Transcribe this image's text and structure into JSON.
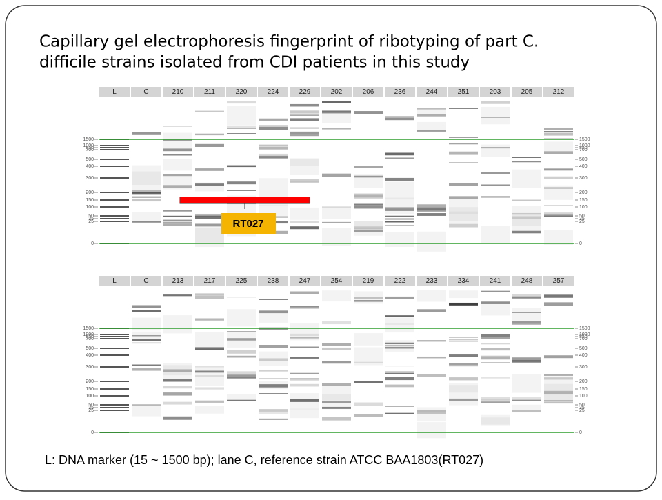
{
  "title": [
    "Capillary gel electrophoresis fingerprint of ribotyping of part C.",
    "difficile strains isolated from CDI patients in this study"
  ],
  "gels": [
    {
      "lanes": [
        "L",
        "C",
        "210",
        "211",
        "220",
        "224",
        "229",
        "202",
        "206",
        "236",
        "244",
        "251",
        "203",
        "205",
        "212"
      ]
    },
    {
      "lanes": [
        "L",
        "C",
        "213",
        "217",
        "225",
        "238",
        "247",
        "254",
        "219",
        "222",
        "233",
        "234",
        "241",
        "248",
        "257"
      ]
    }
  ],
  "size_markers": [
    1500,
    1000,
    850,
    700,
    500,
    400,
    300,
    200,
    150,
    100,
    50,
    35,
    25,
    0
  ],
  "annotation": "RT027",
  "caption": "L: DNA marker (15 ~ 1500 bp); lane C, reference strain ATCC BAA1803(RT027)"
}
